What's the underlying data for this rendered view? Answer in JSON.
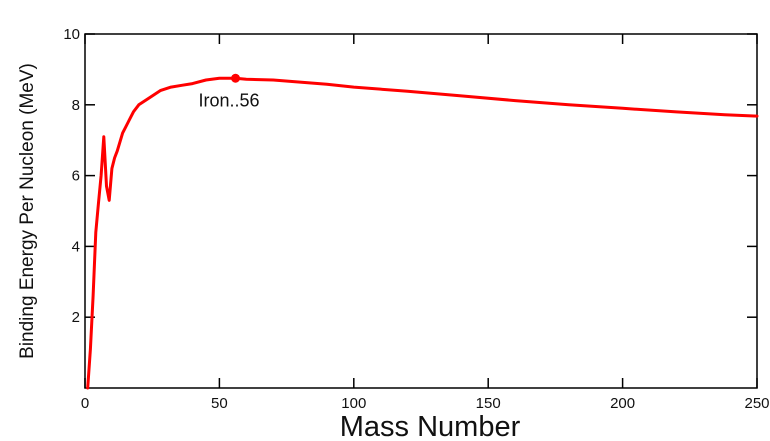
{
  "chart_data": {
    "type": "line",
    "title": "",
    "xlabel": "Mass Number",
    "ylabel": "Binding Energy Per Nucleon (MeV)",
    "xlim": [
      0,
      250
    ],
    "ylim": [
      0,
      10
    ],
    "x_ticks": [
      "0",
      "50",
      "100",
      "150",
      "200",
      "250"
    ],
    "y_ticks": [
      "2",
      "4",
      "6",
      "8",
      "10"
    ],
    "grid": false,
    "series": [
      {
        "color": "#ff0000",
        "x": [
          1,
          2,
          3,
          4,
          5,
          6,
          7,
          8,
          9,
          10,
          11,
          12,
          14,
          16,
          18,
          20,
          24,
          28,
          32,
          36,
          40,
          45,
          50,
          56,
          60,
          70,
          80,
          90,
          100,
          120,
          140,
          160,
          180,
          200,
          220,
          238,
          250
        ],
        "y": [
          0.0,
          1.1,
          2.6,
          4.4,
          5.2,
          6.0,
          7.1,
          5.7,
          5.3,
          6.2,
          6.5,
          6.7,
          7.2,
          7.5,
          7.8,
          8.0,
          8.2,
          8.4,
          8.5,
          8.55,
          8.6,
          8.7,
          8.75,
          8.75,
          8.72,
          8.7,
          8.64,
          8.58,
          8.5,
          8.38,
          8.25,
          8.12,
          8.0,
          7.9,
          7.8,
          7.72,
          7.68
        ]
      }
    ],
    "annotations": [
      {
        "text": "Iron..56",
        "x": 56,
        "y": 8.75
      }
    ]
  }
}
